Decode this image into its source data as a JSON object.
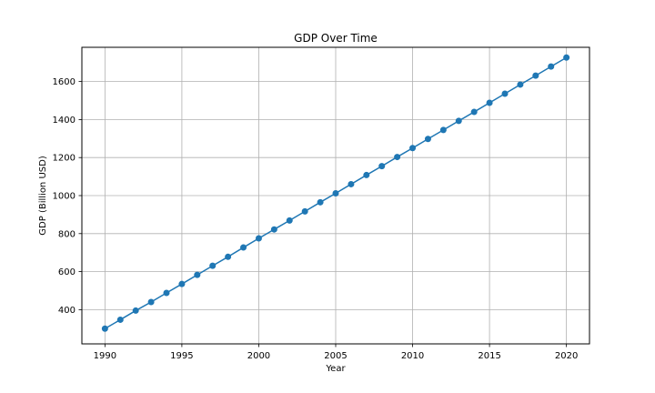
{
  "chart_data": {
    "type": "line",
    "title": "GDP Over Time",
    "xlabel": "Year",
    "ylabel": "GDP (Billion USD)",
    "xlim": [
      1988.5,
      2021.5
    ],
    "ylim": [
      220,
      1780
    ],
    "x_ticks": [
      1990,
      1995,
      2000,
      2005,
      2010,
      2015,
      2020
    ],
    "y_ticks": [
      400,
      600,
      800,
      1000,
      1200,
      1400,
      1600
    ],
    "grid": true,
    "legend": "none",
    "series": [
      {
        "color": "#1f77b4",
        "marker": "circle",
        "x": [
          1990,
          1991,
          1992,
          1993,
          1994,
          1995,
          1996,
          1997,
          1998,
          1999,
          2000,
          2001,
          2002,
          2003,
          2004,
          2005,
          2006,
          2007,
          2008,
          2009,
          2010,
          2011,
          2012,
          2013,
          2014,
          2015,
          2016,
          2017,
          2018,
          2019,
          2020
        ],
        "values": [
          300,
          347,
          395,
          440,
          488,
          535,
          583,
          631,
          678,
          727,
          775,
          822,
          869,
          917,
          965,
          1012,
          1060,
          1108,
          1155,
          1203,
          1250,
          1298,
          1345,
          1393,
          1440,
          1488,
          1536,
          1584,
          1631,
          1679,
          1726
        ]
      }
    ]
  }
}
